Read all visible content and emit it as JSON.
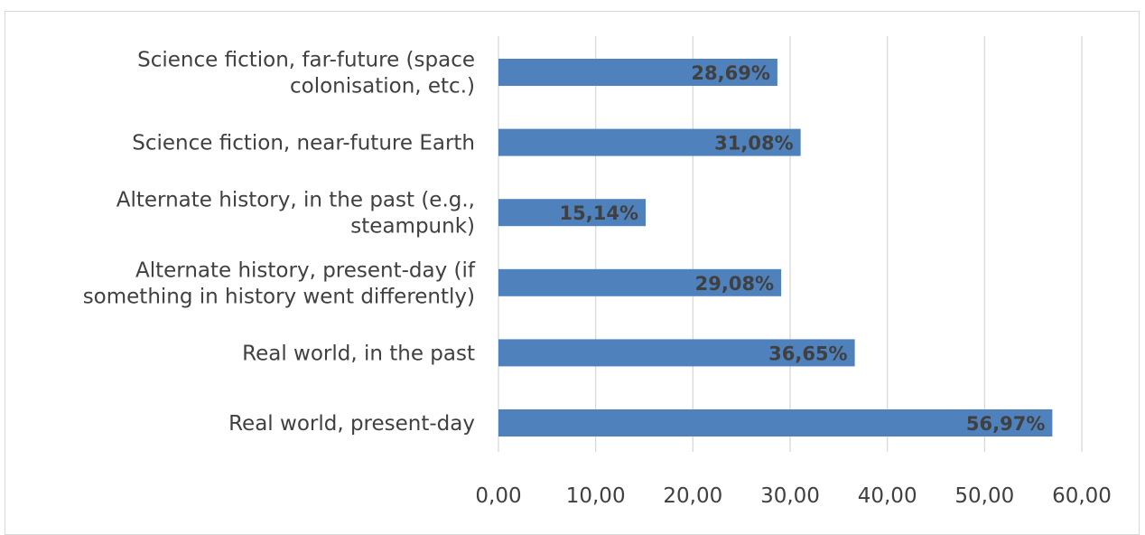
{
  "colors": {
    "bar": "#4f81bd",
    "grid": "#d9d9d9",
    "text": "#404040"
  },
  "chart_data": {
    "type": "bar",
    "orientation": "horizontal",
    "categories": [
      "Science fiction, far-future (space colonisation, etc.)",
      "Science fiction, near-future Earth",
      "Alternate history, in the past (e.g., steampunk)",
      "Alternate history, present-day (if something in history went differently)",
      "Real world, in the past",
      "Real world, present-day"
    ],
    "category_label_lines": [
      [
        "Science fiction, far-future (space",
        "colonisation, etc.)"
      ],
      [
        "Science fiction, near-future Earth"
      ],
      [
        "Alternate history, in the past (e.g.,",
        "steampunk)"
      ],
      [
        "Alternate history, present-day (if",
        "something in history went differently)"
      ],
      [
        "Real world, in the past"
      ],
      [
        "Real world, present-day"
      ]
    ],
    "values": [
      28.69,
      31.08,
      15.14,
      29.08,
      36.65,
      56.97
    ],
    "data_labels": [
      "28,69%",
      "31,08%",
      "15,14%",
      "29,08%",
      "36,65%",
      "56,97%"
    ],
    "xlim": [
      0,
      60
    ],
    "xticks": [
      0,
      10,
      20,
      30,
      40,
      50,
      60
    ],
    "xtick_labels": [
      "0,00",
      "10,00",
      "20,00",
      "30,00",
      "40,00",
      "50,00",
      "60,00"
    ],
    "grid": true,
    "legend": false,
    "title": "",
    "xlabel": "",
    "ylabel": ""
  }
}
